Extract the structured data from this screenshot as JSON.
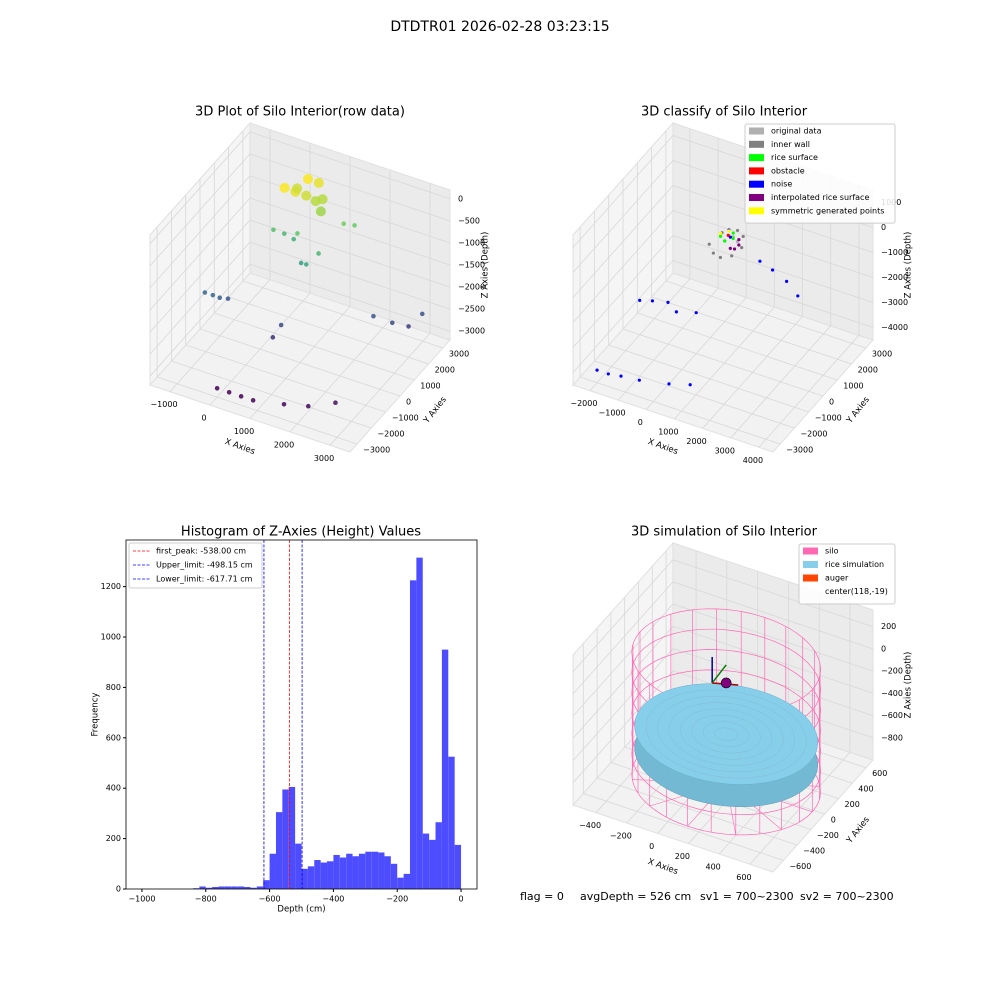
{
  "title": "DTDTR01 2026-02-28 03:23:15",
  "chart_data": [
    {
      "type": "scatter3d",
      "title": "3D Plot of Silo Interior(row data)",
      "xlabel": "X Axies",
      "ylabel": "Y Axies",
      "zlabel": "Z Axies (Depth)",
      "xlim": [
        -1500,
        3500
      ],
      "ylim": [
        -3500,
        3500
      ],
      "zlim": [
        -3200,
        200
      ],
      "xticks": [
        {
          "value": -1000,
          "label": "−1000"
        },
        0,
        1000,
        2000,
        3000
      ],
      "yticks": [
        {
          "value": -3000,
          "label": "−3000"
        },
        {
          "value": -2000,
          "label": "−2000"
        },
        {
          "value": -1000,
          "label": "−1000"
        },
        0,
        1000,
        2000,
        3000
      ],
      "zticks": [
        {
          "value": -3000,
          "label": "−3000"
        },
        {
          "value": -2500,
          "label": "−2500"
        },
        {
          "value": -2000,
          "label": "−2000"
        },
        {
          "value": -1500,
          "label": "−1500"
        },
        {
          "value": -1000,
          "label": "−1000"
        },
        {
          "value": -500,
          "label": "−500"
        },
        0
      ],
      "colormap": "viridis",
      "x": [
        0,
        300,
        600,
        900,
        1600,
        2100,
        2600,
        -1200,
        -1000,
        -900,
        -800,
        2300,
        2700,
        3000,
        3200,
        500,
        600,
        -200,
        0,
        200,
        400,
        600,
        1200,
        1400,
        800,
        1000,
        -100,
        100,
        300,
        500,
        700,
        0,
        200,
        400,
        600
      ],
      "y": [
        -3000,
        -3000,
        -3000,
        -3000,
        -2800,
        -2500,
        -2000,
        -500,
        -500,
        -300,
        0,
        1500,
        1700,
        2000,
        2400,
        -500,
        -200,
        1500,
        1700,
        1800,
        1500,
        1200,
        2500,
        2700,
        1000,
        1300,
        2000,
        2200,
        2400,
        2500,
        2300,
        2600,
        2800,
        3000,
        2700
      ],
      "z": [
        -3000,
        -3000,
        -3000,
        -3000,
        -2950,
        -2950,
        -2900,
        -2100,
        -2100,
        -2200,
        -2300,
        -2300,
        -2400,
        -2500,
        -2300,
        -2600,
        -2400,
        -1100,
        -1200,
        -1300,
        -1000,
        -1500,
        -900,
        -950,
        -1400,
        -1200,
        -300,
        -400,
        -500,
        -600,
        -700,
        -500,
        -300,
        -400,
        -600
      ]
    },
    {
      "type": "scatter3d",
      "title": "3D classify of Silo Interior",
      "xlabel": "X Axies",
      "ylabel": "Y Axies",
      "zlabel": "Z Axies (Depth)",
      "xlim": [
        -2600,
        4500
      ],
      "ylim": [
        -3500,
        3500
      ],
      "zlim": [
        -4500,
        1500
      ],
      "xticks": [
        {
          "value": -2000,
          "label": "−2000"
        },
        {
          "value": -1000,
          "label": "−1000"
        },
        0,
        1000,
        2000,
        3000,
        4000
      ],
      "yticks": [
        {
          "value": -3000,
          "label": "−3000"
        },
        {
          "value": -2000,
          "label": "−2000"
        },
        {
          "value": -1000,
          "label": "−1000"
        },
        0,
        1000,
        2000,
        3000
      ],
      "zticks": [
        {
          "value": -4000,
          "label": "−4000"
        },
        {
          "value": -3000,
          "label": "−3000"
        },
        {
          "value": -2000,
          "label": "−2000"
        },
        {
          "value": -1000,
          "label": "−1000"
        },
        0,
        1000
      ],
      "legend": "upper right",
      "series": [
        {
          "name": "original data",
          "color": "#b0b0b0",
          "x": [
            100,
            300,
            500
          ],
          "y": [
            1800,
            2000,
            1900
          ],
          "z": [
            -1100,
            -1000,
            -1050
          ]
        },
        {
          "name": "inner wall",
          "color": "#808080",
          "x": [
            -300,
            0,
            300,
            600,
            700,
            500,
            200,
            -200
          ],
          "y": [
            1500,
            1200,
            1100,
            1300,
            1800,
            2300,
            2500,
            2200
          ],
          "z": [
            -1200,
            -1250,
            -1250,
            -1200,
            -1150,
            -1100,
            -1100,
            -1150
          ]
        },
        {
          "name": "rice surface",
          "color": "#00ff00",
          "x": [
            0,
            200,
            400,
            300
          ],
          "y": [
            1700,
            1600,
            1800,
            2000
          ],
          "z": [
            -900,
            -950,
            -900,
            -850
          ]
        },
        {
          "name": "obstacle",
          "color": "#ff0000",
          "x": [
            250
          ],
          "y": [
            1750
          ],
          "z": [
            -800
          ]
        },
        {
          "name": "noise",
          "color": "#0000ff",
          "x": [
            200,
            350,
            1500,
            2000,
            2600,
            3200,
            -1500,
            -1200,
            -800,
            -400,
            100,
            -2000,
            -1600,
            -1200,
            -600,
            300,
            900
          ],
          "y": [
            1900,
            1700,
            1500,
            1400,
            1200,
            800,
            -1000,
            -700,
            -400,
            -600,
            -200,
            -3000,
            -3000,
            -2900,
            -2800,
            -2500,
            -2200
          ],
          "z": [
            -700,
            -800,
            -1200,
            -1300,
            -1400,
            -1500,
            -2300,
            -2400,
            -2500,
            -2600,
            -2700,
            -4000,
            -4000,
            -4000,
            -4000,
            -4000,
            -4000
          ]
        },
        {
          "name": "interpolated rice surface",
          "color": "#800080",
          "x": [
            500,
            600,
            650,
            550
          ],
          "y": [
            1400,
            1500,
            1700,
            1900
          ],
          "z": [
            -1000,
            -1050,
            -1000,
            -950
          ]
        },
        {
          "name": "symmetric generated points",
          "color": "#ffff00",
          "x": [
            -100,
            100
          ],
          "y": [
            1900,
            2100
          ],
          "z": [
            -950,
            -900
          ]
        }
      ]
    },
    {
      "type": "histogram",
      "title": "Histogram of Z-Axies (Height) Values",
      "xlabel": "Depth (cm)",
      "ylabel": "Frequency",
      "color": "#4d4dff",
      "bins": [
        -1000,
        -980,
        -960,
        -940,
        -920,
        -900,
        -880,
        -860,
        -840,
        -820,
        -800,
        -780,
        -760,
        -740,
        -720,
        -700,
        -680,
        -660,
        -640,
        -620,
        -600,
        -580,
        -560,
        -540,
        -520,
        -500,
        -480,
        -460,
        -440,
        -420,
        -400,
        -380,
        -360,
        -340,
        -320,
        -300,
        -280,
        -260,
        -240,
        -220,
        -200,
        -180,
        -160,
        -140,
        -120,
        -100,
        -80,
        -60,
        -40,
        -20,
        0
      ],
      "values": [
        0,
        0,
        0,
        0,
        0,
        0,
        0,
        0,
        3,
        10,
        5,
        8,
        10,
        10,
        10,
        10,
        8,
        5,
        10,
        35,
        140,
        305,
        395,
        405,
        180,
        80,
        90,
        115,
        105,
        110,
        135,
        125,
        140,
        130,
        140,
        148,
        148,
        145,
        130,
        100,
        45,
        60,
        1225,
        1315,
        220,
        195,
        265,
        950,
        525,
        175
      ],
      "xlim": [
        -1050,
        50
      ],
      "ylim": [
        0,
        1385
      ],
      "xticks": [
        {
          "value": -1000,
          "label": "−1000"
        },
        {
          "value": -800,
          "label": "−800"
        },
        {
          "value": -600,
          "label": "−600"
        },
        {
          "value": -400,
          "label": "−400"
        },
        {
          "value": -200,
          "label": "−200"
        },
        0
      ],
      "yticks": [
        0,
        200,
        400,
        600,
        800,
        1000,
        1200
      ],
      "legend": "upper left",
      "lines": [
        {
          "label": "first_peak: -538.00 cm",
          "value": -538,
          "color": "#ff0000"
        },
        {
          "label": "Upper_limit: -498.15 cm",
          "value": -498.15,
          "color": "#0000ff"
        },
        {
          "label": "Lower_limit: -617.71 cm",
          "value": -617.71,
          "color": "#0000ff"
        }
      ]
    },
    {
      "type": "silo3d",
      "title": "3D simulation of Silo Interior",
      "xlabel": "X Axies",
      "ylabel": "Y Axies",
      "zlabel": "Z Axies (Depth)",
      "xlim": [
        -550,
        750
      ],
      "ylim": [
        -750,
        700
      ],
      "zlim": [
        -1000,
        350
      ],
      "xticks": [
        {
          "value": -400,
          "label": "−400"
        },
        {
          "value": -200,
          "label": "−200"
        },
        0,
        200,
        400,
        600
      ],
      "yticks": [
        {
          "value": -600,
          "label": "−600"
        },
        {
          "value": -400,
          "label": "−400"
        },
        {
          "value": -200,
          "label": "−200"
        },
        0,
        200,
        400,
        600
      ],
      "zticks": [
        {
          "value": -800,
          "label": "−800"
        },
        {
          "value": -600,
          "label": "−600"
        },
        {
          "value": -400,
          "label": "−400"
        },
        {
          "value": -200,
          "label": "−200"
        },
        0,
        200
      ],
      "legend": "upper right",
      "series": [
        {
          "name": "silo",
          "color": "#ff69b4"
        },
        {
          "name": "rice simulation",
          "color": "#87ceeb"
        },
        {
          "name": "auger",
          "color": "#ff4500"
        },
        {
          "name": "center(118,-19)"
        }
      ],
      "silo": {
        "cx": 118,
        "cy": -19,
        "r": 560,
        "z_bottom": -1000,
        "z_top": 100
      },
      "rice_level": -560,
      "auger": {
        "x": 118,
        "y": -19,
        "z": -100
      }
    }
  ],
  "footer": [
    "flag = 0",
    "avgDepth = 526 cm",
    "sv1 = 700~2300",
    "sv2 = 700~2300"
  ]
}
